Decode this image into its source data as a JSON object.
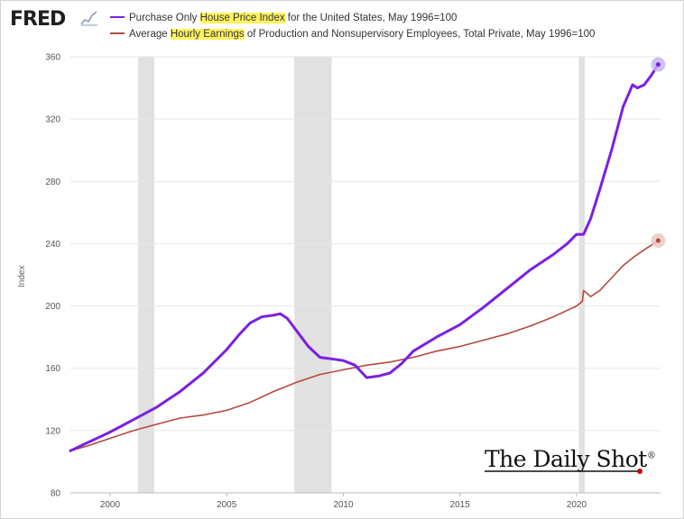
{
  "header": {
    "logo_text": "FRED",
    "legend": [
      {
        "pre": "Purchase Only ",
        "highlight": "House Price Index",
        "post": " for the United States, May 1996=100",
        "color": "#7b1fe0"
      },
      {
        "pre": "Average ",
        "highlight": "Hourly Earnings",
        "post": " of Production and Nonsupervisory Employees, Total Private, May 1996=100",
        "color": "#b24a3c"
      }
    ]
  },
  "watermark": {
    "text": "The Daily Shot",
    "mark": "®"
  },
  "chart_data": {
    "type": "line",
    "ylabel": "Index",
    "ylim": [
      80,
      360
    ],
    "xlim": [
      1998.3,
      2023.6
    ],
    "y_ticks": [
      "80",
      "120",
      "160",
      "200",
      "240",
      "280",
      "320",
      "360"
    ],
    "x_ticks": [
      "2000",
      "2005",
      "2010",
      "2015",
      "2020"
    ],
    "recessions": [
      [
        2001.2,
        2001.9
      ],
      [
        2007.9,
        2009.5
      ],
      [
        2020.1,
        2020.35
      ]
    ],
    "series": [
      {
        "name": "Purchase Only House Price Index for the United States, May 1996=100",
        "color": "#7b1fe0",
        "x": [
          1998.3,
          1999.0,
          2000.0,
          2001.0,
          2002.0,
          2003.0,
          2004.0,
          2005.0,
          2005.5,
          2006.0,
          2006.5,
          2007.0,
          2007.3,
          2007.6,
          2008.0,
          2008.5,
          2009.0,
          2009.5,
          2010.0,
          2010.5,
          2011.0,
          2011.5,
          2012.0,
          2012.5,
          2013.0,
          2014.0,
          2015.0,
          2016.0,
          2017.0,
          2018.0,
          2019.0,
          2019.6,
          2020.0,
          2020.3,
          2020.6,
          2021.0,
          2021.5,
          2022.0,
          2022.4,
          2022.6,
          2022.9,
          2023.2,
          2023.5
        ],
        "values": [
          107,
          112,
          119,
          127,
          135,
          145,
          157,
          172,
          181,
          189,
          193,
          194,
          195,
          192,
          184,
          174,
          167,
          166,
          165,
          162,
          154,
          155,
          157,
          163,
          171,
          180,
          188,
          199,
          211,
          223,
          233,
          240,
          246,
          246,
          256,
          275,
          300,
          328,
          342,
          340,
          342,
          348,
          355
        ]
      },
      {
        "name": "Average Hourly Earnings of Production and Nonsupervisory Employees, Total Private, May 1996=100",
        "color": "#b24a3c",
        "x": [
          1998.3,
          1999.0,
          2000.0,
          2001.0,
          2002.0,
          2003.0,
          2004.0,
          2005.0,
          2006.0,
          2007.0,
          2008.0,
          2009.0,
          2010.0,
          2011.0,
          2012.0,
          2013.0,
          2014.0,
          2015.0,
          2016.0,
          2017.0,
          2018.0,
          2019.0,
          2020.0,
          2020.25,
          2020.3,
          2020.6,
          2021.0,
          2021.5,
          2022.0,
          2022.5,
          2023.0,
          2023.5
        ],
        "values": [
          107,
          110,
          115,
          120,
          124,
          128,
          130,
          133,
          138,
          145,
          151,
          156,
          159,
          162,
          164,
          167,
          171,
          174,
          178,
          182,
          187,
          193,
          200,
          203,
          210,
          206,
          210,
          218,
          226,
          232,
          237,
          242
        ]
      }
    ]
  }
}
